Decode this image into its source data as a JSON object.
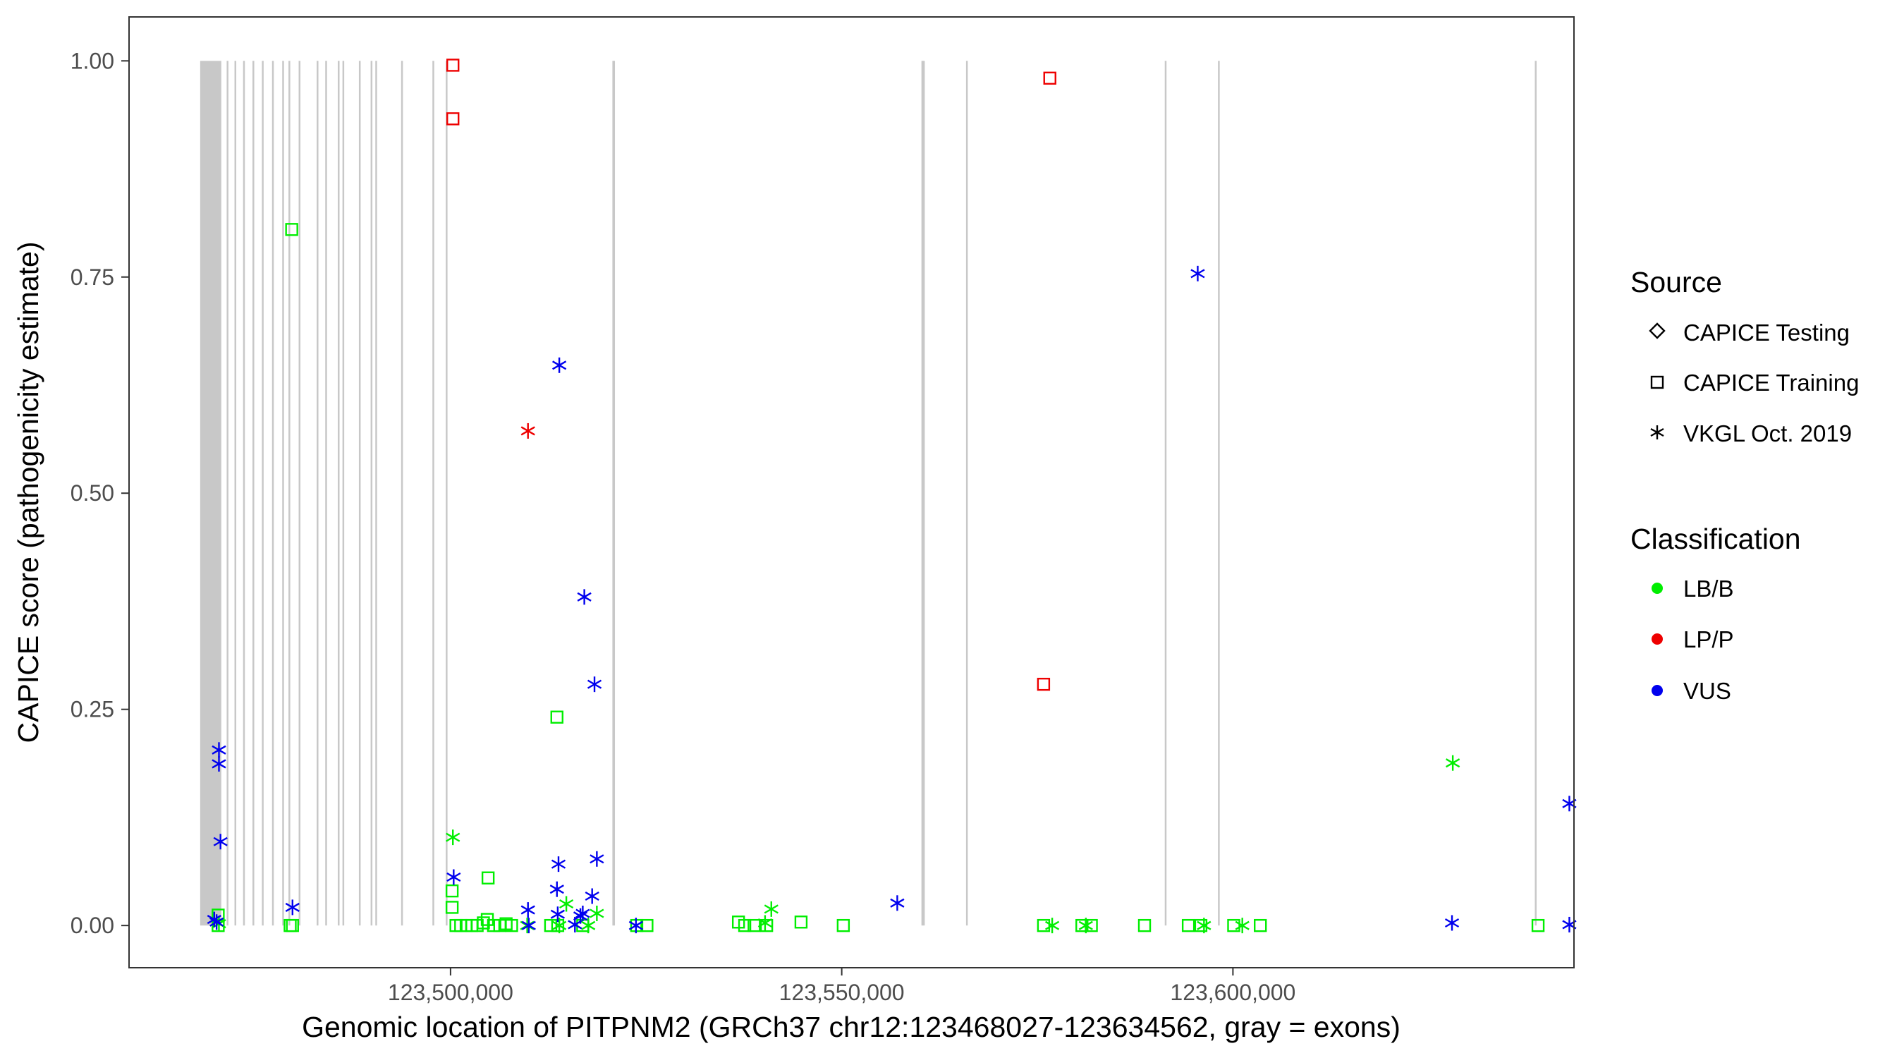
{
  "chart_data": {
    "type": "scatter",
    "title": "",
    "xlabel": "Genomic location of PITPNM2 (GRCh37 chr12:123468027-123634562, gray = exons)",
    "ylabel": "CAPICE score (pathogenicity estimate)",
    "xlim": [
      123459000,
      123643500
    ],
    "ylim": [
      -0.048,
      1.05
    ],
    "x_ticks": [
      123500000,
      123550000,
      123600000
    ],
    "x_tick_labels": [
      "123,500,000",
      "123,550,000",
      "123,600,000"
    ],
    "y_ticks": [
      0,
      0.25,
      0.5,
      0.75,
      1
    ],
    "y_tick_labels": [
      "0.00",
      "0.25",
      "0.50",
      "0.75",
      "1.00"
    ],
    "grid": false,
    "legend_position": "right",
    "legends": {
      "source": {
        "title": "Source",
        "items": [
          {
            "label": "CAPICE Testing",
            "shape": "diamond"
          },
          {
            "label": "CAPICE Training",
            "shape": "square"
          },
          {
            "label": "VKGL Oct. 2019",
            "shape": "asterisk"
          }
        ]
      },
      "classification": {
        "title": "Classification",
        "items": [
          {
            "label": "LB/B",
            "color": "#00ee00"
          },
          {
            "label": "LP/P",
            "color": "#ee0000"
          },
          {
            "label": "VUS",
            "color": "#0000ee"
          }
        ]
      }
    },
    "exons": [
      [
        123468000,
        123470700
      ],
      123471500,
      123472500,
      123473600,
      123474800,
      123476000,
      123477300,
      123478600,
      123479400,
      123480700,
      123483000,
      123484100,
      123485700,
      123486300,
      123488400,
      123489900,
      123490500,
      123493800,
      123497800,
      123499500,
      123520800,
      123520900,
      123560300,
      123560500,
      123566000,
      123591400,
      123598200,
      123638700
    ],
    "series": [
      {
        "source": "CAPICE Training",
        "classification": "LP/P",
        "points": [
          [
            123500300,
            0.995
          ],
          [
            123500300,
            0.933
          ],
          [
            123576600,
            0.98
          ],
          [
            123575800,
            0.279
          ]
        ]
      },
      {
        "source": "VKGL Oct. 2019",
        "classification": "LP/P",
        "points": [
          [
            123509900,
            0.572
          ]
        ]
      },
      {
        "source": "CAPICE Training",
        "classification": "LB/B",
        "points": [
          [
            123479700,
            0.805
          ],
          [
            123513600,
            0.241
          ],
          [
            123504800,
            0.055
          ],
          [
            123500200,
            0.04
          ],
          [
            123500200,
            0.021
          ],
          [
            123470300,
            0.012
          ],
          [
            123470300,
            0.0
          ],
          [
            123479500,
            0.0
          ],
          [
            123479800,
            0.0
          ],
          [
            123500700,
            0.0
          ],
          [
            123501300,
            0.0
          ],
          [
            123502000,
            0.0
          ],
          [
            123502700,
            0.0
          ],
          [
            123503400,
            0.0
          ],
          [
            123504200,
            0.003
          ],
          [
            123504700,
            0.007
          ],
          [
            123505500,
            0.0
          ],
          [
            123506300,
            0.0
          ],
          [
            123507100,
            0.002
          ],
          [
            123507800,
            0.0
          ],
          [
            123512800,
            0.0
          ],
          [
            123513700,
            0.0
          ],
          [
            123516900,
            0.0
          ],
          [
            123523800,
            0.0
          ],
          [
            123525100,
            0.0
          ],
          [
            123536800,
            0.004
          ],
          [
            123537600,
            0.0
          ],
          [
            123538800,
            0.0
          ],
          [
            123540400,
            0.0
          ],
          [
            123544800,
            0.004
          ],
          [
            123550200,
            0.0
          ],
          [
            123575800,
            0.0
          ],
          [
            123580700,
            0.0
          ],
          [
            123581900,
            0.0
          ],
          [
            123588700,
            0.0
          ],
          [
            123594300,
            0.0
          ],
          [
            123595900,
            0.0
          ],
          [
            123600100,
            0.0
          ],
          [
            123603500,
            0.0
          ],
          [
            123639000,
            0.0
          ]
        ]
      },
      {
        "source": "VKGL Oct. 2019",
        "classification": "LB/B",
        "points": [
          [
            123500300,
            0.102
          ],
          [
            123628100,
            0.188
          ],
          [
            123541000,
            0.019
          ],
          [
            123514800,
            0.025
          ],
          [
            123518700,
            0.014
          ],
          [
            123470400,
            0.002
          ],
          [
            123509800,
            0.0
          ],
          [
            123513900,
            0.0
          ],
          [
            123517600,
            0.0
          ],
          [
            123540200,
            0.003
          ],
          [
            123576900,
            0.0
          ],
          [
            123581200,
            0.0
          ],
          [
            123596300,
            0.0
          ],
          [
            123601200,
            0.0
          ]
        ]
      },
      {
        "source": "VKGL Oct. 2019",
        "classification": "VUS",
        "points": [
          [
            123513900,
            0.648
          ],
          [
            123595500,
            0.754
          ],
          [
            123517100,
            0.38
          ],
          [
            123518400,
            0.279
          ],
          [
            123470400,
            0.203
          ],
          [
            123470400,
            0.187
          ],
          [
            123470600,
            0.097
          ],
          [
            123500400,
            0.056
          ],
          [
            123513800,
            0.071
          ],
          [
            123518700,
            0.077
          ],
          [
            123513600,
            0.042
          ],
          [
            123518100,
            0.034
          ],
          [
            123557100,
            0.026
          ],
          [
            123479800,
            0.021
          ],
          [
            123509900,
            0.018
          ],
          [
            123513700,
            0.013
          ],
          [
            123516600,
            0.011
          ],
          [
            123516900,
            0.014
          ],
          [
            123469800,
            0.007
          ],
          [
            123470100,
            0.004
          ],
          [
            123510000,
            0.0
          ],
          [
            123515900,
            0.001
          ],
          [
            123523700,
            0.0
          ],
          [
            123628000,
            0.003
          ],
          [
            123643000,
            0.141
          ],
          [
            123643000,
            0.001
          ]
        ]
      }
    ]
  }
}
